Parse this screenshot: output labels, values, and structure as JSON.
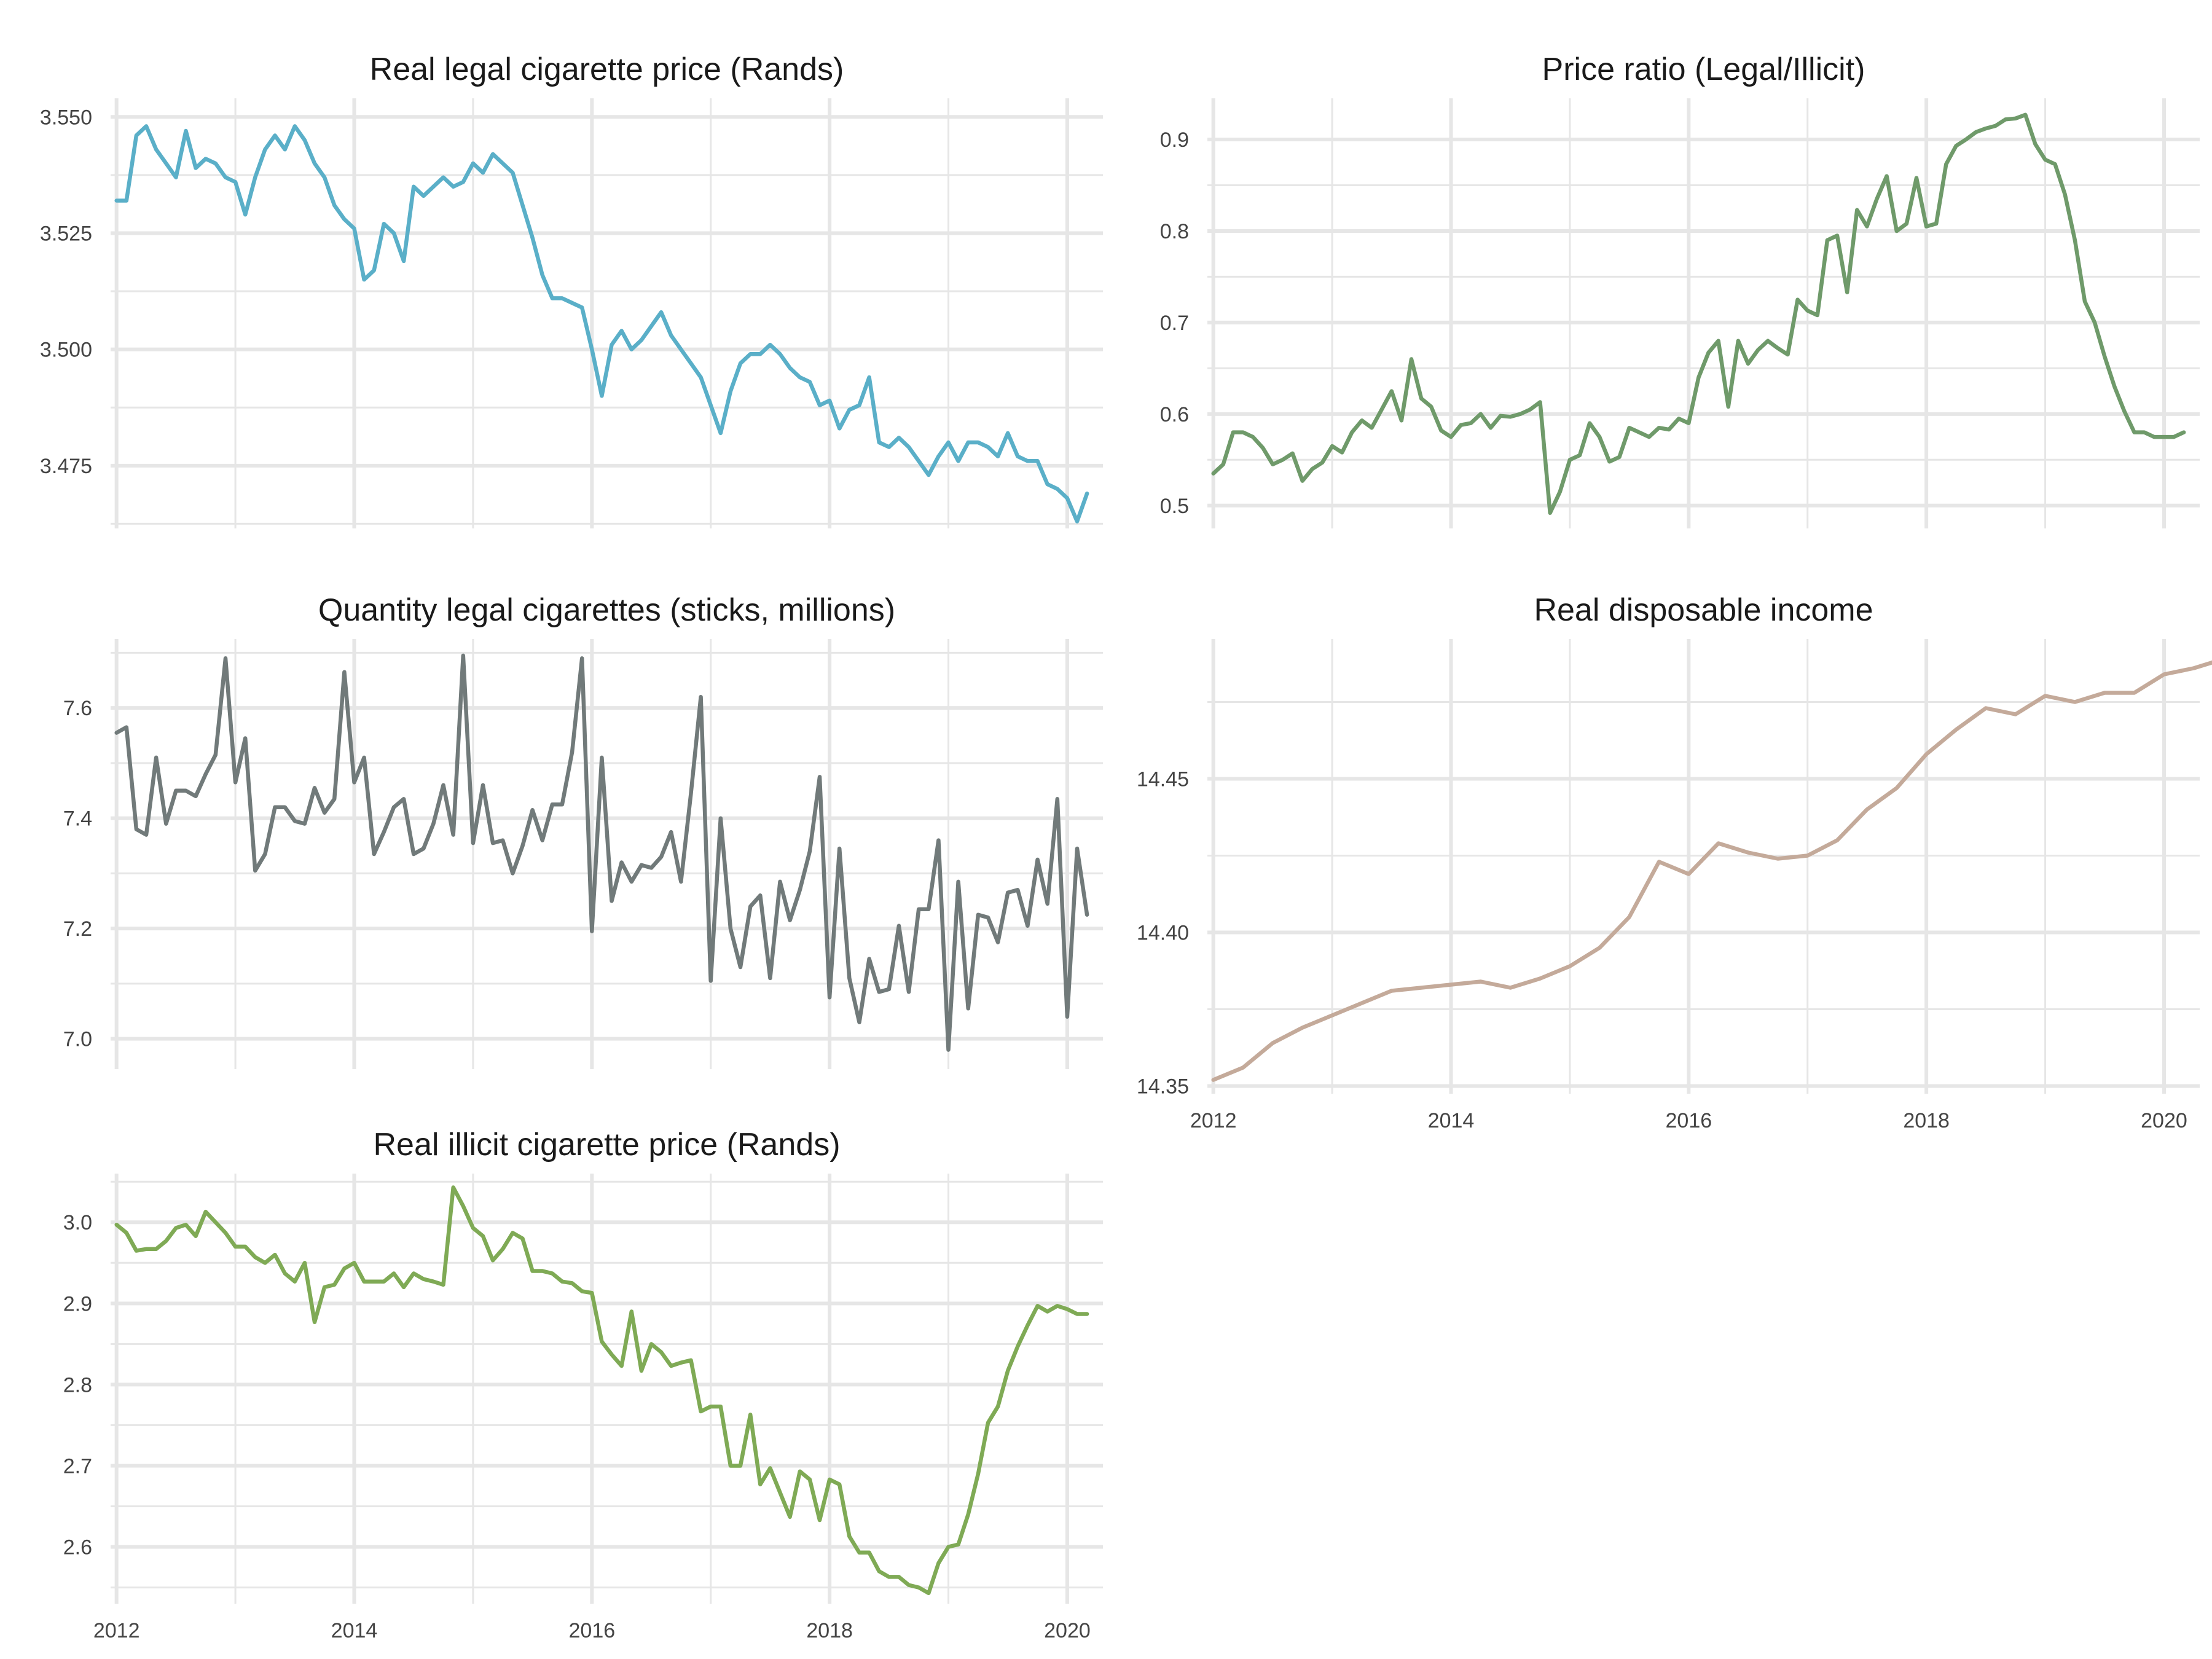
{
  "chart_data": [
    {
      "id": "legal_price",
      "type": "line",
      "title": "Real legal cigarette price (Rands)",
      "xlabel": "",
      "ylabel": "",
      "color": "#5aafc8",
      "xlim": [
        2011.95,
        2020.3
      ],
      "ylim": [
        3.4615,
        3.554
      ],
      "yticks": [
        3.475,
        3.5,
        3.525,
        3.55
      ],
      "ytick_labels": [
        "3.475",
        "3.500",
        "3.525",
        "3.550"
      ],
      "xticks": [
        2012,
        2014,
        2016,
        2018,
        2020
      ],
      "xtick_labels": [],
      "grid": true,
      "x_start": 2012.0,
      "x_step": 0.08333,
      "values": [
        3.532,
        3.532,
        3.546,
        3.548,
        3.543,
        3.54,
        3.537,
        3.547,
        3.539,
        3.541,
        3.54,
        3.537,
        3.536,
        3.529,
        3.537,
        3.543,
        3.546,
        3.543,
        3.548,
        3.545,
        3.54,
        3.537,
        3.531,
        3.528,
        3.526,
        3.515,
        3.517,
        3.527,
        3.525,
        3.519,
        3.535,
        3.533,
        3.535,
        3.537,
        3.535,
        3.536,
        3.54,
        3.538,
        3.542,
        3.54,
        3.538,
        3.531,
        3.524,
        3.516,
        3.511,
        3.511,
        3.51,
        3.509,
        3.5,
        3.49,
        3.501,
        3.504,
        3.5,
        3.502,
        3.505,
        3.508,
        3.503,
        3.5,
        3.497,
        3.494,
        3.488,
        3.482,
        3.491,
        3.497,
        3.499,
        3.499,
        3.501,
        3.499,
        3.496,
        3.494,
        3.493,
        3.488,
        3.489,
        3.483,
        3.487,
        3.488,
        3.494,
        3.48,
        3.479,
        3.481,
        3.479,
        3.476,
        3.473,
        3.477,
        3.48,
        3.476,
        3.48,
        3.48,
        3.479,
        3.477,
        3.482,
        3.477,
        3.476,
        3.476,
        3.471,
        3.47,
        3.468,
        3.463,
        3.469
      ]
    },
    {
      "id": "price_ratio",
      "type": "line",
      "title": "Price ratio (Legal/Illicit)",
      "xlabel": "",
      "ylabel": "",
      "color": "#6f9a6a",
      "xlim": [
        2011.95,
        2020.3
      ],
      "ylim": [
        0.475,
        0.945
      ],
      "yticks": [
        0.5,
        0.6,
        0.7,
        0.8,
        0.9
      ],
      "ytick_labels": [
        "0.5",
        "0.6",
        "0.7",
        "0.8",
        "0.9"
      ],
      "xticks": [
        2012,
        2014,
        2016,
        2018,
        2020
      ],
      "xtick_labels": [],
      "grid": true,
      "x_start": 2012.0,
      "x_step": 0.08333,
      "values": [
        0.535,
        0.545,
        0.58,
        0.58,
        0.575,
        0.563,
        0.545,
        0.55,
        0.557,
        0.527,
        0.54,
        0.547,
        0.565,
        0.558,
        0.58,
        0.593,
        0.585,
        0.605,
        0.625,
        0.593,
        0.66,
        0.617,
        0.608,
        0.582,
        0.575,
        0.588,
        0.59,
        0.6,
        0.585,
        0.598,
        0.597,
        0.6,
        0.605,
        0.613,
        0.492,
        0.515,
        0.55,
        0.555,
        0.59,
        0.575,
        0.548,
        0.553,
        0.585,
        0.58,
        0.575,
        0.585,
        0.583,
        0.595,
        0.59,
        0.64,
        0.667,
        0.68,
        0.608,
        0.68,
        0.655,
        0.67,
        0.68,
        0.672,
        0.665,
        0.725,
        0.713,
        0.708,
        0.79,
        0.795,
        0.733,
        0.823,
        0.805,
        0.835,
        0.86,
        0.8,
        0.808,
        0.858,
        0.805,
        0.808,
        0.873,
        0.893,
        0.9,
        0.908,
        0.912,
        0.915,
        0.922,
        0.923,
        0.927,
        0.895,
        0.878,
        0.873,
        0.84,
        0.79,
        0.723,
        0.7,
        0.663,
        0.63,
        0.603,
        0.58,
        0.58,
        0.575,
        0.575,
        0.575,
        0.58
      ]
    },
    {
      "id": "legal_quantity",
      "type": "line",
      "title": "Quantity legal cigarettes (sticks, millions)",
      "xlabel": "",
      "ylabel": "",
      "color": "#717a7a",
      "xlim": [
        2011.95,
        2020.3
      ],
      "ylim": [
        6.945,
        7.725
      ],
      "yticks": [
        7.0,
        7.2,
        7.4,
        7.6
      ],
      "ytick_labels": [
        "7.0",
        "7.2",
        "7.4",
        "7.6"
      ],
      "xticks": [
        2012,
        2014,
        2016,
        2018,
        2020
      ],
      "xtick_labels": [],
      "grid": true,
      "x_start": 2012.0,
      "x_step": 0.08333,
      "values": [
        7.555,
        7.565,
        7.38,
        7.37,
        7.51,
        7.39,
        7.45,
        7.45,
        7.44,
        7.48,
        7.515,
        7.69,
        7.465,
        7.545,
        7.305,
        7.335,
        7.42,
        7.42,
        7.395,
        7.39,
        7.455,
        7.41,
        7.435,
        7.665,
        7.465,
        7.51,
        7.335,
        7.375,
        7.42,
        7.435,
        7.335,
        7.345,
        7.39,
        7.46,
        7.37,
        7.695,
        7.355,
        7.46,
        7.355,
        7.36,
        7.3,
        7.35,
        7.415,
        7.36,
        7.425,
        7.425,
        7.52,
        7.69,
        7.195,
        7.51,
        7.25,
        7.32,
        7.285,
        7.315,
        7.31,
        7.33,
        7.375,
        7.285,
        7.445,
        7.62,
        7.105,
        7.4,
        7.2,
        7.13,
        7.24,
        7.26,
        7.11,
        7.285,
        7.215,
        7.27,
        7.34,
        7.475,
        7.075,
        7.345,
        7.11,
        7.03,
        7.145,
        7.085,
        7.09,
        7.205,
        7.085,
        7.235,
        7.235,
        7.36,
        6.98,
        7.285,
        7.055,
        7.225,
        7.22,
        7.175,
        7.265,
        7.27,
        7.205,
        7.325,
        7.245,
        7.435,
        7.04,
        7.345,
        7.225
      ]
    },
    {
      "id": "disposable_income",
      "type": "line",
      "title": "Real disposable income",
      "xlabel": "",
      "ylabel": "",
      "color": "#c4aa9a",
      "xlim": [
        2011.95,
        2020.3
      ],
      "ylim": [
        14.3475,
        14.4955
      ],
      "yticks": [
        14.35,
        14.4,
        14.45
      ],
      "ytick_labels": [
        "14.35",
        "14.40",
        "14.45"
      ],
      "xticks": [
        2012,
        2014,
        2016,
        2018,
        2020
      ],
      "xtick_labels": [
        "2012",
        "2014",
        "2016",
        "2018",
        "2020"
      ],
      "grid": true,
      "x_start": 2012.0,
      "x_step": 0.25,
      "values": [
        14.352,
        14.356,
        14.364,
        14.369,
        14.373,
        14.377,
        14.381,
        14.382,
        14.383,
        14.384,
        14.382,
        14.385,
        14.389,
        14.395,
        14.405,
        14.423,
        14.419,
        14.429,
        14.426,
        14.424,
        14.425,
        14.43,
        14.44,
        14.447,
        14.458,
        14.466,
        14.473,
        14.471,
        14.477,
        14.475,
        14.478,
        14.478,
        14.484,
        14.486,
        14.489,
        14.488
      ]
    },
    {
      "id": "illicit_price",
      "type": "line",
      "title": "Real illicit cigarette price (Rands)",
      "xlabel": "",
      "ylabel": "",
      "color": "#7faa55",
      "xlim": [
        2011.95,
        2020.3
      ],
      "ylim": [
        2.53,
        3.06
      ],
      "yticks": [
        2.6,
        2.7,
        2.8,
        2.9,
        3.0
      ],
      "ytick_labels": [
        "2.6",
        "2.7",
        "2.8",
        "2.9",
        "3.0"
      ],
      "xticks": [
        2012,
        2014,
        2016,
        2018,
        2020
      ],
      "xtick_labels": [
        "2012",
        "2014",
        "2016",
        "2018",
        "2020"
      ],
      "grid": true,
      "x_start": 2012.0,
      "x_step": 0.08333,
      "values": [
        2.997,
        2.987,
        2.965,
        2.967,
        2.967,
        2.977,
        2.993,
        2.997,
        2.983,
        3.013,
        3.0,
        2.987,
        2.97,
        2.97,
        2.957,
        2.95,
        2.96,
        2.937,
        2.927,
        2.95,
        2.877,
        2.92,
        2.923,
        2.943,
        2.95,
        2.927,
        2.927,
        2.927,
        2.937,
        2.92,
        2.937,
        2.93,
        2.927,
        2.923,
        3.043,
        3.02,
        2.993,
        2.983,
        2.953,
        2.967,
        2.987,
        2.98,
        2.94,
        2.94,
        2.937,
        2.927,
        2.925,
        2.915,
        2.913,
        2.853,
        2.837,
        2.823,
        2.89,
        2.817,
        2.85,
        2.84,
        2.823,
        2.827,
        2.83,
        2.767,
        2.773,
        2.773,
        2.7,
        2.7,
        2.763,
        2.677,
        2.697,
        2.667,
        2.637,
        2.693,
        2.683,
        2.633,
        2.683,
        2.677,
        2.613,
        2.593,
        2.593,
        2.57,
        2.563,
        2.563,
        2.553,
        2.55,
        2.543,
        2.58,
        2.6,
        2.603,
        2.64,
        2.69,
        2.753,
        2.773,
        2.817,
        2.847,
        2.873,
        2.897,
        2.89,
        2.897,
        2.893,
        2.887,
        2.887
      ]
    }
  ]
}
